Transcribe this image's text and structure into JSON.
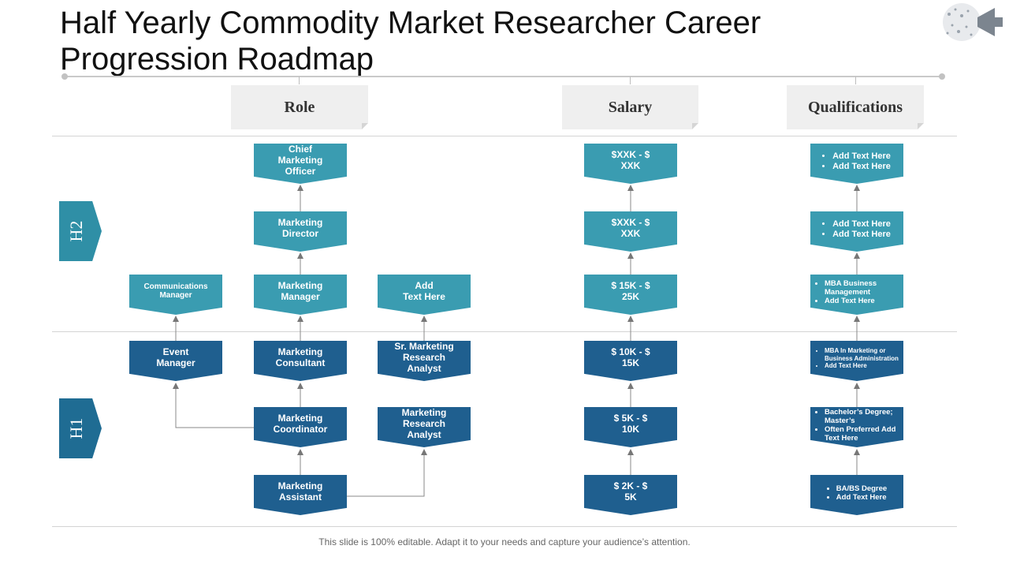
{
  "title": "Half Yearly Commodity Market Researcher Career Progression Roadmap",
  "columns": {
    "role": "Role",
    "salary": "Salary",
    "qualifications": "Qualifications"
  },
  "periods": {
    "h2": "H2",
    "h1": "H1"
  },
  "roles": {
    "chief_marketing_officer": "Chief\nMarketing\nOfficer",
    "marketing_director": "Marketing\nDirector",
    "communications_manager": "Communications\nManager",
    "marketing_manager": "Marketing\nManager",
    "add_text": "Add\nText Here",
    "event_manager": "Event\nManager",
    "marketing_consultant": "Marketing\nConsultant",
    "sr_marketing_research_analyst": "Sr. Marketing\nResearch\nAnalyst",
    "marketing_coordinator": "Marketing\nCoordinator",
    "marketing_research_analyst": "Marketing\nResearch\nAnalyst",
    "marketing_assistant": "Marketing\nAssistant"
  },
  "salaries": [
    "$XXK - $\nXXK",
    "$XXK - $\nXXK",
    "$ 15K - $\n25K",
    "$ 10K - $\n15K",
    "$ 5K - $\n10K",
    "$ 2K - $\n5K"
  ],
  "qualifications": [
    [
      "Add Text Here",
      "Add Text Here"
    ],
    [
      "Add Text Here",
      "Add Text Here"
    ],
    [
      "MBA Business Management",
      "Add Text Here"
    ],
    [
      "MBA In Marketing or Business Administration",
      "Add Text Here"
    ],
    [
      "Bachelor’s Degree; Master’s",
      "Often Preferred Add Text Here"
    ],
    [
      "BA/BS Degree",
      "Add Text Here"
    ]
  ],
  "footer": "This slide is 100% editable. Adapt it to your needs and capture your audience’s attention."
}
